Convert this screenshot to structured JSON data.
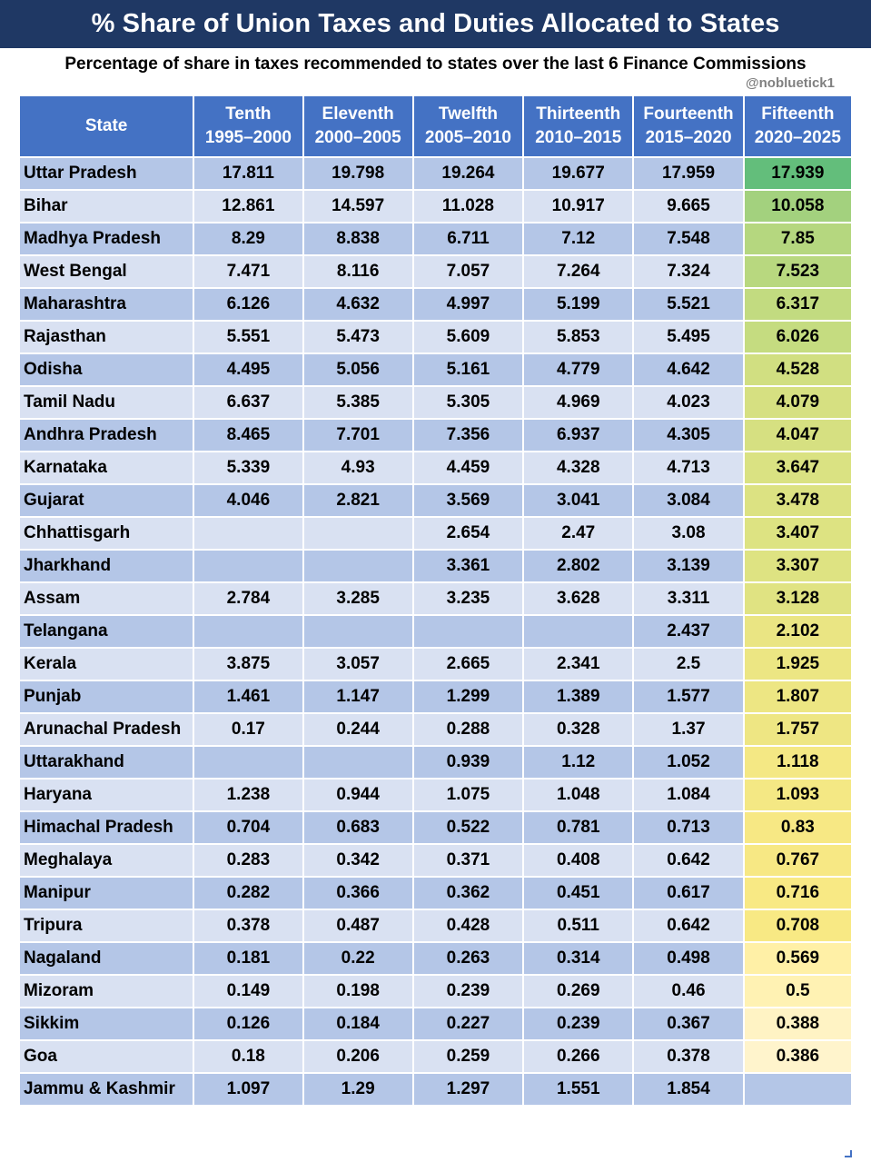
{
  "title": "% Share of Union Taxes and Duties Allocated to States",
  "subtitle": "Percentage of share in taxes recommended to states over the last 6 Finance Commissions",
  "handle": "@nobluetick1",
  "table": {
    "state_header": "State",
    "columns": [
      {
        "name": "Tenth",
        "years": "1995–2000"
      },
      {
        "name": "Eleventh",
        "years": "2000–2005"
      },
      {
        "name": "Twelfth",
        "years": "2005–2010"
      },
      {
        "name": "Thirteenth",
        "years": "2010–2015"
      },
      {
        "name": "Fourteenth",
        "years": "2015–2020"
      },
      {
        "name": "Fifteenth",
        "years": "2020–2025"
      }
    ],
    "rows": [
      {
        "state": "Uttar Pradesh",
        "values": [
          "17.811",
          "19.798",
          "19.264",
          "19.677",
          "17.959",
          "17.939"
        ],
        "heat": "#63be7b"
      },
      {
        "state": "Bihar",
        "values": [
          "12.861",
          "14.597",
          "11.028",
          "10.917",
          "9.665",
          "10.058"
        ],
        "heat": "#a3d17e"
      },
      {
        "state": "Madhya Pradesh",
        "values": [
          "8.29",
          "8.838",
          "6.711",
          "7.12",
          "7.548",
          "7.85"
        ],
        "heat": "#b5d77f"
      },
      {
        "state": "West Bengal",
        "values": [
          "7.471",
          "8.116",
          "7.057",
          "7.264",
          "7.324",
          "7.523"
        ],
        "heat": "#b8d87f"
      },
      {
        "state": "Maharashtra",
        "values": [
          "6.126",
          "4.632",
          "4.997",
          "5.199",
          "5.521",
          "6.317"
        ],
        "heat": "#c2db80"
      },
      {
        "state": "Rajasthan",
        "values": [
          "5.551",
          "5.473",
          "5.609",
          "5.853",
          "5.495",
          "6.026"
        ],
        "heat": "#c5dc80"
      },
      {
        "state": "Odisha",
        "values": [
          "4.495",
          "5.056",
          "5.161",
          "4.779",
          "4.642",
          "4.528"
        ],
        "heat": "#d1df81"
      },
      {
        "state": "Tamil Nadu",
        "values": [
          "6.637",
          "5.385",
          "5.305",
          "4.969",
          "4.023",
          "4.079"
        ],
        "heat": "#d6e081"
      },
      {
        "state": "Andhra Pradesh",
        "values": [
          "8.465",
          "7.701",
          "7.356",
          "6.937",
          "4.305",
          "4.047"
        ],
        "heat": "#d6e081"
      },
      {
        "state": "Karnataka",
        "values": [
          "5.339",
          "4.93",
          "4.459",
          "4.328",
          "4.713",
          "3.647"
        ],
        "heat": "#dae282"
      },
      {
        "state": "Gujarat",
        "values": [
          "4.046",
          "2.821",
          "3.569",
          "3.041",
          "3.084",
          "3.478"
        ],
        "heat": "#dce282"
      },
      {
        "state": "Chhattisgarh",
        "values": [
          "",
          "",
          "2.654",
          "2.47",
          "3.08",
          "3.407"
        ],
        "heat": "#dde382"
      },
      {
        "state": "Jharkhand",
        "values": [
          "",
          "",
          "3.361",
          "2.802",
          "3.139",
          "3.307"
        ],
        "heat": "#dee382"
      },
      {
        "state": "Assam",
        "values": [
          "2.784",
          "3.285",
          "3.235",
          "3.628",
          "3.311",
          "3.128"
        ],
        "heat": "#e0e382"
      },
      {
        "state": "Telangana",
        "values": [
          "",
          "",
          "",
          "",
          "2.437",
          "2.102"
        ],
        "heat": "#eae583"
      },
      {
        "state": "Kerala",
        "values": [
          "3.875",
          "3.057",
          "2.665",
          "2.341",
          "2.5",
          "1.925"
        ],
        "heat": "#ece683"
      },
      {
        "state": "Punjab",
        "values": [
          "1.461",
          "1.147",
          "1.299",
          "1.389",
          "1.577",
          "1.807"
        ],
        "heat": "#ede683"
      },
      {
        "state": "Arunachal Pradesh",
        "values": [
          "0.17",
          "0.244",
          "0.288",
          "0.328",
          "1.37",
          "1.757"
        ],
        "heat": "#eee683"
      },
      {
        "state": "Uttarakhand",
        "values": [
          "",
          "",
          "0.939",
          "1.12",
          "1.052",
          "1.118"
        ],
        "heat": "#f4e884"
      },
      {
        "state": "Haryana",
        "values": [
          "1.238",
          "0.944",
          "1.075",
          "1.048",
          "1.084",
          "1.093"
        ],
        "heat": "#f4e884"
      },
      {
        "state": "Himachal Pradesh",
        "values": [
          "0.704",
          "0.683",
          "0.522",
          "0.781",
          "0.713",
          "0.83"
        ],
        "heat": "#f7e884"
      },
      {
        "state": "Meghalaya",
        "values": [
          "0.283",
          "0.342",
          "0.371",
          "0.408",
          "0.642",
          "0.767"
        ],
        "heat": "#f7e884"
      },
      {
        "state": "Manipur",
        "values": [
          "0.282",
          "0.366",
          "0.362",
          "0.451",
          "0.617",
          "0.716"
        ],
        "heat": "#f8e984"
      },
      {
        "state": "Tripura",
        "values": [
          "0.378",
          "0.487",
          "0.428",
          "0.511",
          "0.642",
          "0.708"
        ],
        "heat": "#f8e984"
      },
      {
        "state": "Nagaland",
        "values": [
          "0.181",
          "0.22",
          "0.263",
          "0.314",
          "0.498",
          "0.569"
        ],
        "heat": "#fff0a6"
      },
      {
        "state": "Mizoram",
        "values": [
          "0.149",
          "0.198",
          "0.239",
          "0.269",
          "0.46",
          "0.5"
        ],
        "heat": "#fff2b3"
      },
      {
        "state": "Sikkim",
        "values": [
          "0.126",
          "0.184",
          "0.227",
          "0.239",
          "0.367",
          "0.388"
        ],
        "heat": "#fff3c4"
      },
      {
        "state": "Goa",
        "values": [
          "0.18",
          "0.206",
          "0.259",
          "0.266",
          "0.378",
          "0.386"
        ],
        "heat": "#fff4cc"
      },
      {
        "state": "Jammu & Kashmir",
        "values": [
          "1.097",
          "1.29",
          "1.297",
          "1.551",
          "1.854",
          ""
        ],
        "heat": ""
      }
    ]
  }
}
